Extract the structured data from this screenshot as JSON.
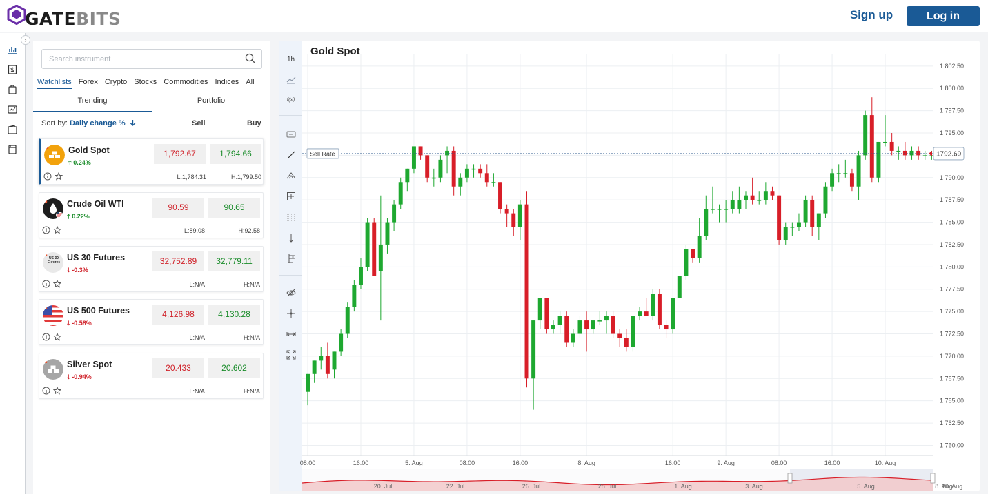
{
  "header": {
    "logo_gate": "GATE",
    "logo_bits": "BITS",
    "signup_label": "Sign up",
    "login_label": "Log in"
  },
  "sidebar_icons": [
    "chart-icon",
    "dollar-doc-icon",
    "briefcase-icon",
    "chart-window-icon",
    "wallet-icon",
    "document-icon"
  ],
  "panel": {
    "search_placeholder": "Search instrument",
    "tabs": [
      "Watchlists",
      "Forex",
      "Crypto",
      "Stocks",
      "Commodities",
      "Indices",
      "All"
    ],
    "active_tab": "Watchlists",
    "sub_tabs": [
      "Trending",
      "Portfolio"
    ],
    "sort_label": "Sort by:",
    "sort_value": "Daily change %",
    "sell_header": "Sell",
    "buy_header": "Buy",
    "instruments": [
      {
        "name": "Gold Spot",
        "change": "0.24%",
        "direction": "up",
        "sell": "1,792.67",
        "buy": "1,794.66",
        "low": "L:1,784.31",
        "high": "H:1,799.50",
        "icon_color": "#f2a20c"
      },
      {
        "name": "Crude Oil WTI",
        "change": "0.22%",
        "direction": "up",
        "sell": "90.59",
        "buy": "90.65",
        "low": "L:89.08",
        "high": "H:92.58",
        "icon_color": "#1e1e1e"
      },
      {
        "name": "US 30 Futures",
        "change": "-0.3%",
        "direction": "down",
        "sell": "32,752.89",
        "buy": "32,779.11",
        "low": "L:N/A",
        "high": "H:N/A",
        "icon_color": "#e9e9e9",
        "icon_text": "US 30 Futures"
      },
      {
        "name": "US 500 Futures",
        "change": "-0.58%",
        "direction": "down",
        "sell": "4,126.98",
        "buy": "4,130.28",
        "low": "L:N/A",
        "high": "H:N/A",
        "icon_color": "#e23a3a"
      },
      {
        "name": "Silver Spot",
        "change": "-0.94%",
        "direction": "down",
        "sell": "20.433",
        "buy": "20.602",
        "low": "L:N/A",
        "high": "H:N/A",
        "icon_color": "#a6a6a6"
      }
    ]
  },
  "chart_toolbar": {
    "timeframe": "1h",
    "indicator_label": "f(x)",
    "tool_icons": [
      "line-chart-icon",
      "comment-icon",
      "trend-line-icon",
      "pitchfork-icon",
      "crosshair-box-icon",
      "fib-grid-icon",
      "pin-icon",
      "measure-icon",
      "eye-icon",
      "crosshair-icon",
      "range-icon",
      "fullscreen-icon"
    ]
  },
  "chart": {
    "title": "Gold Spot",
    "sell_rate_label": "Sell Rate",
    "current_price_label": "1792.69",
    "colors": {
      "up": "#1ea830",
      "down": "#d81e28",
      "grid": "#eceff2",
      "axis_text": "#555"
    }
  },
  "chart_data": {
    "type": "candlestick",
    "title": "Gold Spot",
    "y_ticks": [
      1760,
      1762.5,
      1765,
      1767.5,
      1770,
      1772.5,
      1775,
      1777.5,
      1780,
      1782.5,
      1785,
      1787.5,
      1790,
      1792.5,
      1795,
      1797.5,
      1800,
      1802.5
    ],
    "y_tick_labels": [
      "1 760.00",
      "1 762.50",
      "1 765.00",
      "1 767.50",
      "1 770.00",
      "1 772.50",
      "1 775.00",
      "1 777.50",
      "1 780.00",
      "1 782.50",
      "1 785.00",
      "1 787.50",
      "1 790.00",
      "1 792.50",
      "1 795.00",
      "1 797.50",
      "1 800.00",
      "1 802.50"
    ],
    "ylim": [
      1758.8,
      1803.8
    ],
    "x_tick_labels": [
      "08:00",
      "16:00",
      "5. Aug",
      "08:00",
      "16:00",
      "8. Aug",
      "16:00",
      "9. Aug",
      "08:00",
      "16:00",
      "10. Aug"
    ],
    "x_tick_candle_index": [
      0,
      8,
      16,
      24,
      32,
      42,
      55,
      63,
      71,
      79,
      87
    ],
    "sell_rate": 1792.69,
    "navigator_labels": [
      "20. Jul",
      "22. Jul",
      "26. Jul",
      "28. Jul",
      "1. Aug",
      "3. Aug",
      "5. Aug",
      "8. Aug",
      "10. Aug"
    ],
    "candles": [
      [
        1766,
        1768,
        1764.5,
        1768
      ],
      [
        1768,
        1769.5,
        1767,
        1769.5
      ],
      [
        1769.5,
        1771,
        1768.5,
        1770
      ],
      [
        1770,
        1771.5,
        1767.5,
        1768
      ],
      [
        1768.5,
        1770.5,
        1767.5,
        1770.5
      ],
      [
        1770.5,
        1773,
        1770,
        1772.5
      ],
      [
        1772.5,
        1776,
        1772,
        1775.5
      ],
      [
        1775.5,
        1778.5,
        1775,
        1778
      ],
      [
        1778,
        1781,
        1777.5,
        1780
      ],
      [
        1780,
        1785.5,
        1779.5,
        1785
      ],
      [
        1785,
        1785.5,
        1779,
        1779
      ],
      [
        1779.5,
        1788,
        1774,
        1782.5
      ],
      [
        1782.5,
        1785.5,
        1781.5,
        1785
      ],
      [
        1785,
        1787.5,
        1784,
        1787
      ],
      [
        1787,
        1790,
        1786.5,
        1789.5
      ],
      [
        1789.5,
        1791,
        1788.5,
        1791
      ],
      [
        1791,
        1793.5,
        1790.5,
        1793.5
      ],
      [
        1793.5,
        1793.5,
        1792,
        1792.5
      ],
      [
        1792.5,
        1792.5,
        1789.5,
        1790
      ],
      [
        1790,
        1791,
        1789,
        1790
      ],
      [
        1790,
        1792.5,
        1789.5,
        1792
      ],
      [
        1792.5,
        1793.5,
        1790.5,
        1793
      ],
      [
        1793,
        1793.5,
        1788,
        1789
      ],
      [
        1789,
        1790.5,
        1788,
        1790
      ],
      [
        1790,
        1791.5,
        1789.5,
        1791
      ],
      [
        1791,
        1791.5,
        1790,
        1791
      ],
      [
        1791,
        1791.5,
        1790,
        1790.5
      ],
      [
        1790.5,
        1791.5,
        1789,
        1789.5
      ],
      [
        1789.5,
        1790.5,
        1789,
        1789.5
      ],
      [
        1789.5,
        1789.5,
        1786,
        1786.5
      ],
      [
        1786.5,
        1787,
        1784.5,
        1786
      ],
      [
        1786,
        1786.5,
        1783.5,
        1784.5
      ],
      [
        1784.5,
        1787.5,
        1783,
        1787
      ],
      [
        1787,
        1788.5,
        1766.5,
        1767.5
      ],
      [
        1767.5,
        1774,
        1764,
        1774
      ],
      [
        1774,
        1776.5,
        1773,
        1776.5
      ],
      [
        1776.5,
        1776.5,
        1772.5,
        1773
      ],
      [
        1773,
        1774,
        1772.5,
        1773.5
      ],
      [
        1773.5,
        1775,
        1772.5,
        1774.5
      ],
      [
        1774.5,
        1775,
        1771,
        1771.5
      ],
      [
        1771.5,
        1773,
        1771,
        1772.5
      ],
      [
        1772.5,
        1774.5,
        1772,
        1774
      ],
      [
        1774,
        1775,
        1770.5,
        1773
      ],
      [
        1773,
        1774,
        1772.5,
        1774
      ],
      [
        1774,
        1775,
        1773.5,
        1774
      ],
      [
        1774,
        1775,
        1772.5,
        1774.5
      ],
      [
        1774.5,
        1775,
        1772,
        1772.5
      ],
      [
        1772.5,
        1773,
        1771,
        1772
      ],
      [
        1772,
        1773,
        1770.5,
        1771
      ],
      [
        1771,
        1774.5,
        1770.5,
        1774.5
      ],
      [
        1774.5,
        1775.5,
        1774,
        1775
      ],
      [
        1775,
        1776.5,
        1774.5,
        1774.5
      ],
      [
        1774.5,
        1777.5,
        1774,
        1777
      ],
      [
        1777,
        1777.5,
        1773,
        1773.5
      ],
      [
        1773.5,
        1774,
        1772,
        1773
      ],
      [
        1773,
        1776.5,
        1772.5,
        1776.5
      ],
      [
        1776.5,
        1779,
        1776.5,
        1779
      ],
      [
        1779,
        1782.5,
        1778.5,
        1782
      ],
      [
        1782,
        1782,
        1780.5,
        1781
      ],
      [
        1781,
        1785.5,
        1780.5,
        1783.5
      ],
      [
        1783.5,
        1788,
        1783,
        1786.5
      ],
      [
        1786.5,
        1789,
        1786,
        1786.5
      ],
      [
        1786.5,
        1787,
        1785,
        1786.5
      ],
      [
        1786.5,
        1787.5,
        1785,
        1786.5
      ],
      [
        1786.5,
        1788.5,
        1786,
        1787.5
      ],
      [
        1786.5,
        1789,
        1786,
        1787.5
      ],
      [
        1787.5,
        1788.5,
        1786.5,
        1788
      ],
      [
        1788,
        1790,
        1787,
        1787.5
      ],
      [
        1787.5,
        1788.5,
        1787,
        1787.5
      ],
      [
        1787.5,
        1789.5,
        1787,
        1788.5
      ],
      [
        1788.5,
        1789,
        1787.5,
        1788
      ],
      [
        1788,
        1788,
        1782.5,
        1783
      ],
      [
        1783,
        1785,
        1782.5,
        1784.5
      ],
      [
        1784.5,
        1785,
        1783.5,
        1784.5
      ],
      [
        1784.5,
        1786,
        1784,
        1785
      ],
      [
        1785,
        1788,
        1784.5,
        1787.5
      ],
      [
        1787.5,
        1788,
        1783.5,
        1784.5
      ],
      [
        1784.5,
        1786,
        1783,
        1786
      ],
      [
        1786,
        1789.5,
        1785.5,
        1789
      ],
      [
        1789,
        1791,
        1788.5,
        1790.5
      ],
      [
        1790.5,
        1791.5,
        1789.5,
        1790.5
      ],
      [
        1790.5,
        1792,
        1790,
        1790.5
      ],
      [
        1790.5,
        1791,
        1788.5,
        1789
      ],
      [
        1789,
        1793,
        1787.5,
        1792.5
      ],
      [
        1792.5,
        1797.5,
        1792,
        1797
      ],
      [
        1797,
        1799,
        1789.5,
        1790
      ],
      [
        1790,
        1794,
        1789.5,
        1794
      ],
      [
        1794,
        1797,
        1793.5,
        1794
      ],
      [
        1794,
        1795,
        1792.5,
        1793
      ],
      [
        1793,
        1793.5,
        1792,
        1793
      ],
      [
        1793,
        1794,
        1792,
        1792.5
      ],
      [
        1792.5,
        1793.5,
        1792,
        1793
      ],
      [
        1793,
        1793.5,
        1792,
        1792.5
      ],
      [
        1792.5,
        1793,
        1792,
        1792.5
      ],
      [
        1792.5,
        1793,
        1792,
        1792.5
      ]
    ]
  }
}
